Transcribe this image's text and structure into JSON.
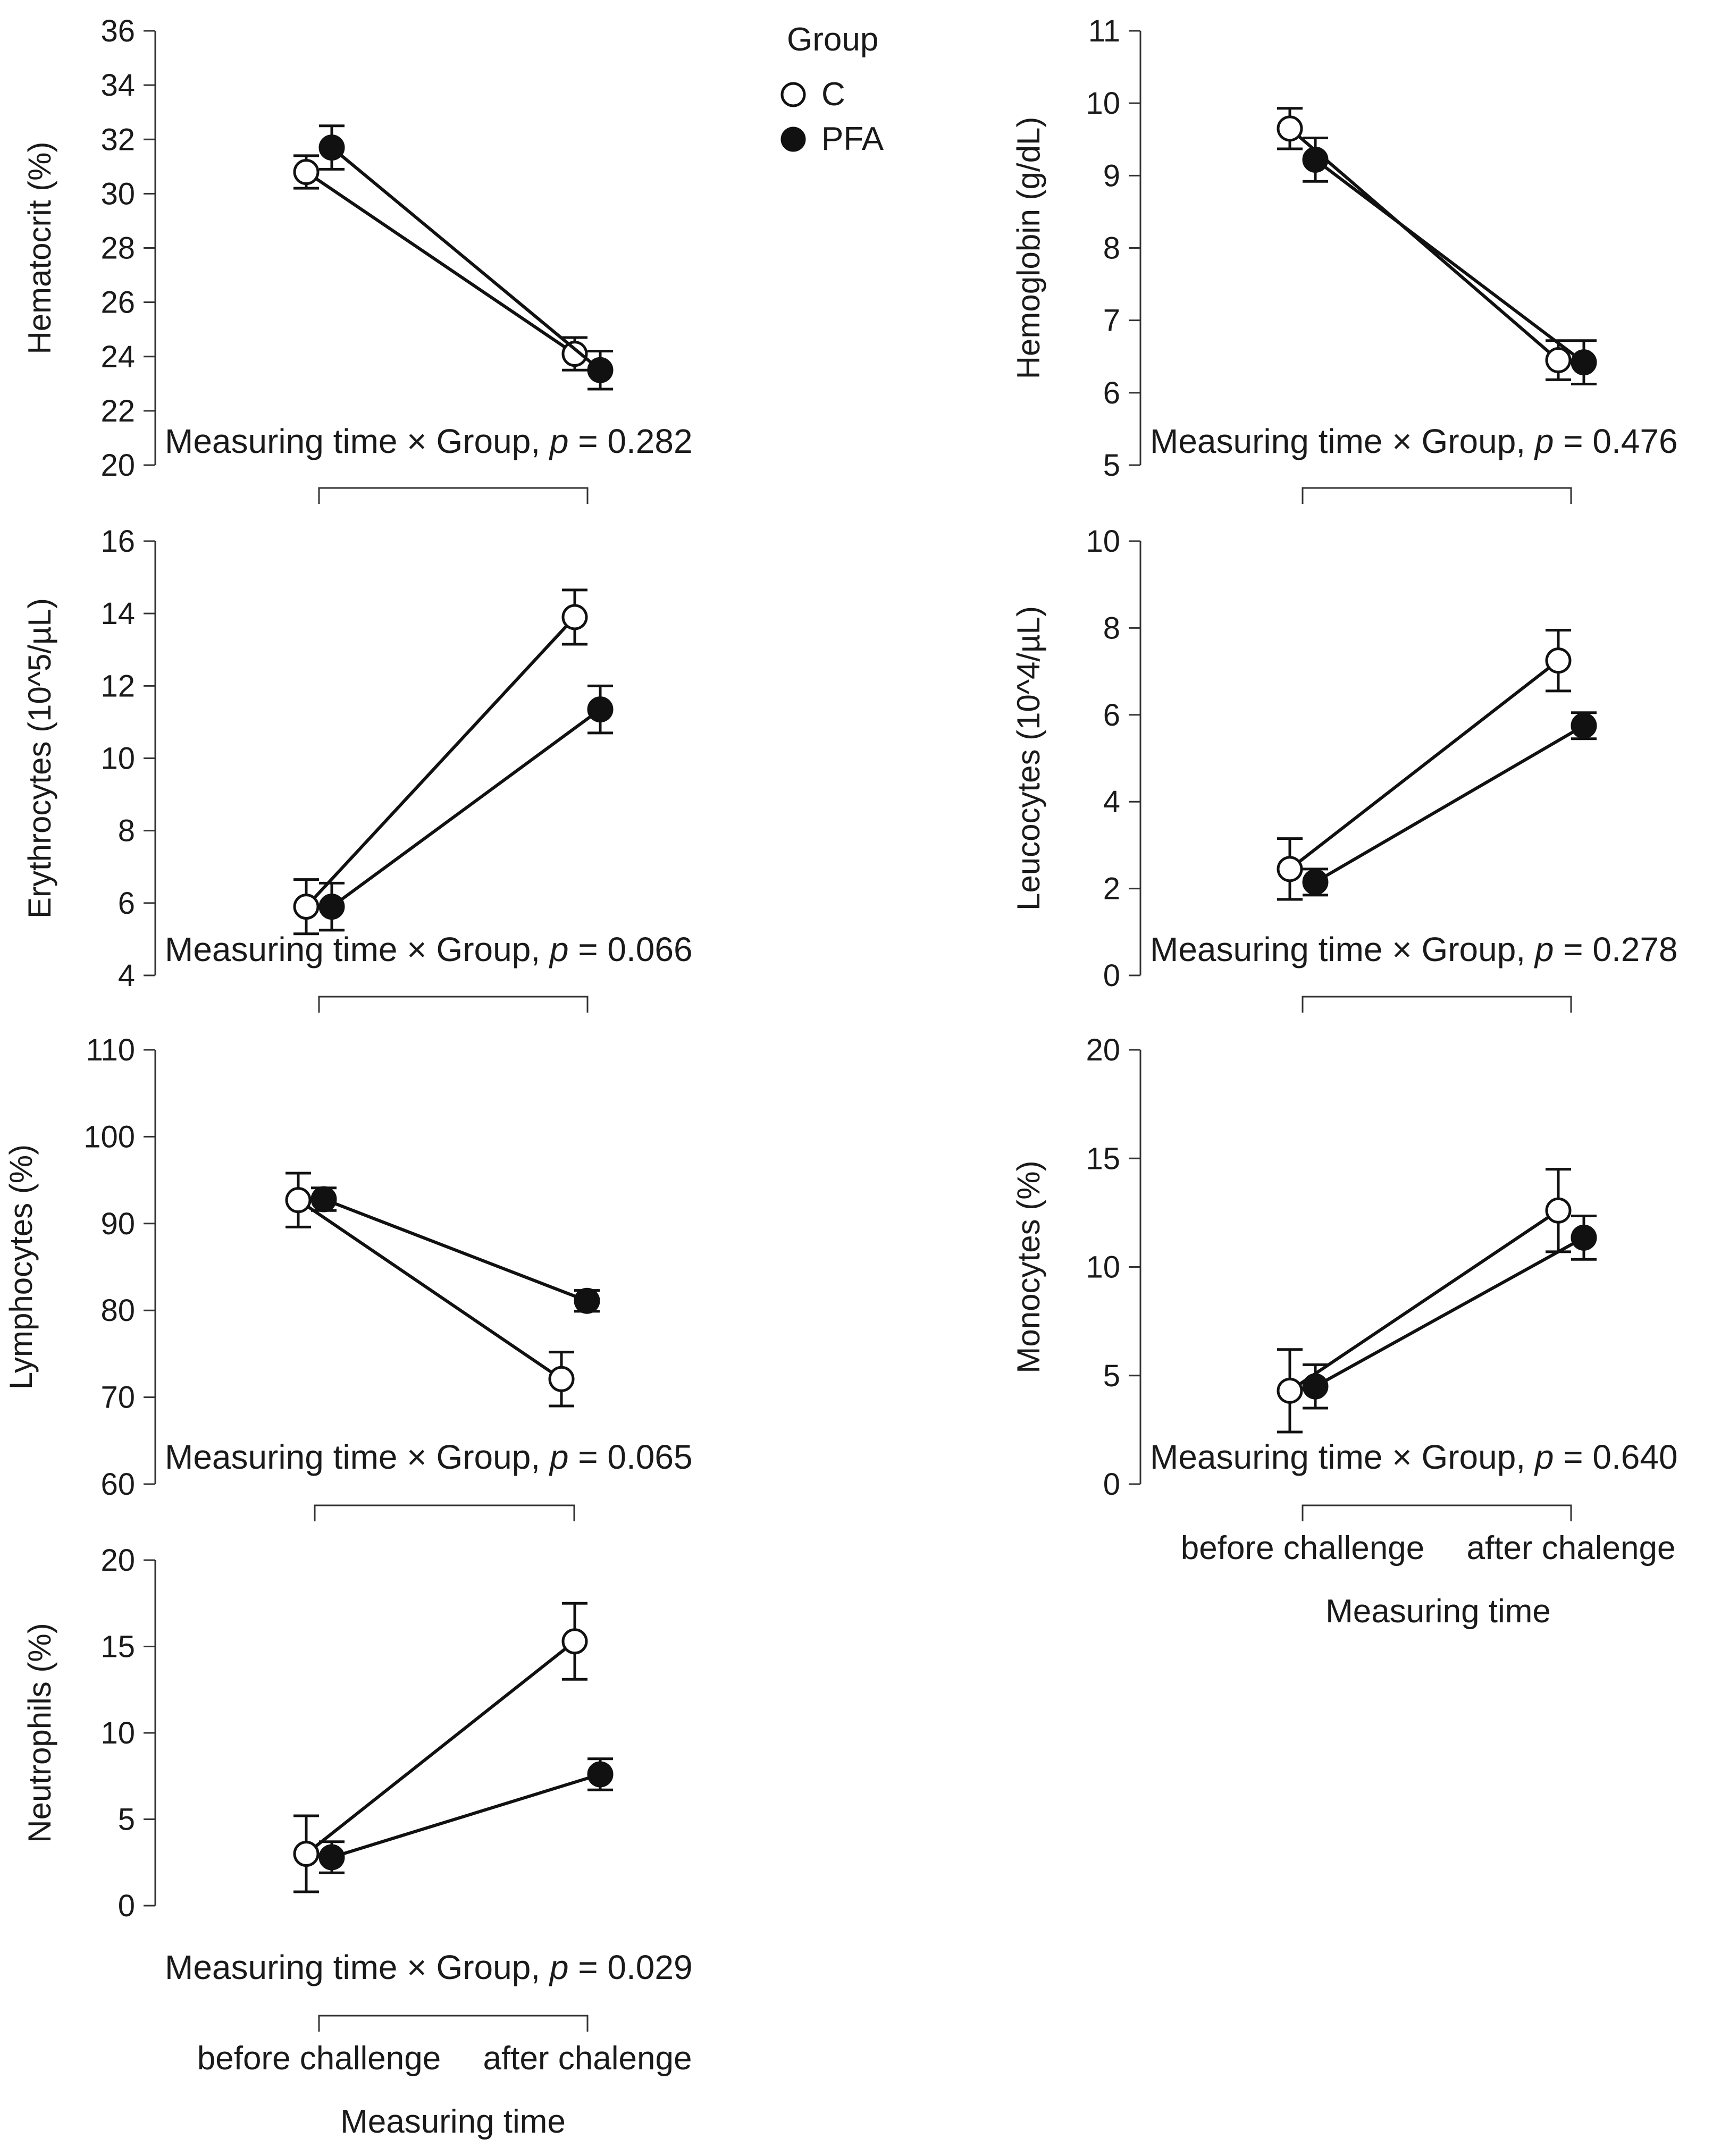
{
  "legend": {
    "title": "Group",
    "entries": [
      {
        "name": "C",
        "marker": "open"
      },
      {
        "name": "PFA",
        "marker": "filled"
      }
    ]
  },
  "chart_data": [
    {
      "type": "line",
      "ylabel": "Hematocrit (%)",
      "ylim": [
        20,
        36
      ],
      "yticks": [
        20,
        22,
        24,
        26,
        28,
        30,
        32,
        34,
        36
      ],
      "categories": [
        "before challenge",
        "after chalenge"
      ],
      "series": [
        {
          "name": "C",
          "values": [
            30.8,
            24.1
          ],
          "errors": [
            0.6,
            0.6
          ]
        },
        {
          "name": "PFA",
          "values": [
            31.7,
            23.5
          ],
          "errors": [
            0.8,
            0.7
          ]
        }
      ],
      "interaction": {
        "prefix": "Measuring time × Group, ",
        "p_symbol": "p",
        "p_value": "= 0.282"
      },
      "show_categories": false,
      "xlabel": ""
    },
    {
      "type": "line",
      "ylabel": "Hemoglobin (g/dL)",
      "ylim": [
        5,
        11
      ],
      "yticks": [
        5,
        6,
        7,
        8,
        9,
        10,
        11
      ],
      "categories": [
        "before challenge",
        "after chalenge"
      ],
      "series": [
        {
          "name": "C",
          "values": [
            9.65,
            6.45
          ],
          "errors": [
            0.28,
            0.27
          ]
        },
        {
          "name": "PFA",
          "values": [
            9.22,
            6.42
          ],
          "errors": [
            0.3,
            0.3
          ]
        }
      ],
      "interaction": {
        "prefix": "Measuring time × Group, ",
        "p_symbol": "p",
        "p_value": "= 0.476"
      },
      "show_categories": false,
      "xlabel": ""
    },
    {
      "type": "line",
      "ylabel": "Erythrocytes (10^5/µL)",
      "ylim": [
        4,
        16
      ],
      "yticks": [
        4,
        6,
        8,
        10,
        12,
        14,
        16
      ],
      "categories": [
        "before challenge",
        "after chalenge"
      ],
      "series": [
        {
          "name": "C",
          "values": [
            5.9,
            13.9
          ],
          "errors": [
            0.75,
            0.75
          ]
        },
        {
          "name": "PFA",
          "values": [
            5.9,
            11.35
          ],
          "errors": [
            0.65,
            0.65
          ]
        }
      ],
      "interaction": {
        "prefix": "Measuring time × Group, ",
        "p_symbol": "p",
        "p_value": "= 0.066"
      },
      "show_categories": false,
      "xlabel": ""
    },
    {
      "type": "line",
      "ylabel": "Leucocytes (10^4/µL)",
      "ylim": [
        0,
        10
      ],
      "yticks": [
        0,
        2,
        4,
        6,
        8,
        10
      ],
      "categories": [
        "before challenge",
        "after chalenge"
      ],
      "series": [
        {
          "name": "C",
          "values": [
            2.45,
            7.25
          ],
          "errors": [
            0.7,
            0.7
          ]
        },
        {
          "name": "PFA",
          "values": [
            2.15,
            5.75
          ],
          "errors": [
            0.3,
            0.3
          ]
        }
      ],
      "interaction": {
        "prefix": "Measuring time × Group, ",
        "p_symbol": "p",
        "p_value": "= 0.278"
      },
      "show_categories": false,
      "xlabel": ""
    },
    {
      "type": "line",
      "ylabel": "Lymphocytes (%)",
      "ylim": [
        60,
        110
      ],
      "yticks": [
        60,
        70,
        80,
        90,
        100,
        110
      ],
      "categories": [
        "before challenge",
        "after chalenge"
      ],
      "series": [
        {
          "name": "C",
          "values": [
            92.7,
            72.1
          ],
          "errors": [
            3.1,
            3.1
          ]
        },
        {
          "name": "PFA",
          "values": [
            92.8,
            81.1
          ],
          "errors": [
            1.3,
            1.2
          ]
        }
      ],
      "interaction": {
        "prefix": "Measuring time × Group, ",
        "p_symbol": "p",
        "p_value": "= 0.065"
      },
      "show_categories": false,
      "xlabel": ""
    },
    {
      "type": "line",
      "ylabel": "Monocytes (%)",
      "ylim": [
        0,
        20
      ],
      "yticks": [
        0,
        5,
        10,
        15,
        20
      ],
      "categories": [
        "before challenge",
        "after chalenge"
      ],
      "series": [
        {
          "name": "C",
          "values": [
            4.3,
            12.6
          ],
          "errors": [
            1.9,
            1.9
          ]
        },
        {
          "name": "PFA",
          "values": [
            4.5,
            11.35
          ],
          "errors": [
            1.0,
            1.0
          ]
        }
      ],
      "interaction": {
        "prefix": "Measuring time × Group, ",
        "p_symbol": "p",
        "p_value": "= 0.640"
      },
      "show_categories": true,
      "xlabel": "Measuring time"
    },
    {
      "type": "line",
      "ylabel": "Neutrophils (%)",
      "ylim": [
        0,
        20
      ],
      "yticks": [
        0,
        5,
        10,
        15,
        20
      ],
      "categories": [
        "before challenge",
        "after chalenge"
      ],
      "series": [
        {
          "name": "C",
          "values": [
            3.0,
            15.3
          ],
          "errors": [
            2.2,
            2.2
          ]
        },
        {
          "name": "PFA",
          "values": [
            2.8,
            7.6
          ],
          "errors": [
            0.9,
            0.9
          ]
        }
      ],
      "interaction": {
        "prefix": "Measuring time × Group, ",
        "p_symbol": "p",
        "p_value": "= 0.029"
      },
      "show_categories": true,
      "xlabel": "Measuring time"
    }
  ]
}
